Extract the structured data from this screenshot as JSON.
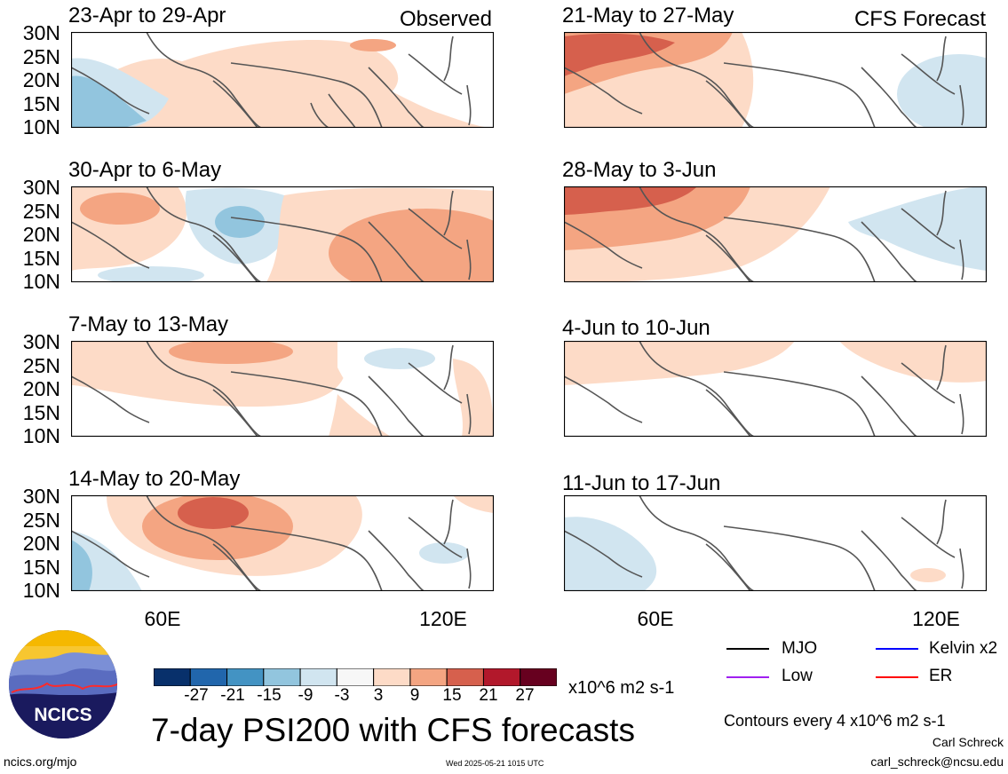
{
  "panels": [
    {
      "id": "p1",
      "title": "23-Apr to 29-Apr",
      "tag": "Observed"
    },
    {
      "id": "p2",
      "title": "21-May to 27-May",
      "tag": "CFS Forecast"
    },
    {
      "id": "p3",
      "title": "30-Apr to 6-May",
      "tag": ""
    },
    {
      "id": "p4",
      "title": "28-May to 3-Jun",
      "tag": ""
    },
    {
      "id": "p5",
      "title": "7-May to 13-May",
      "tag": ""
    },
    {
      "id": "p6",
      "title": "4-Jun to 10-Jun",
      "tag": ""
    },
    {
      "id": "p7",
      "title": "14-May to 20-May",
      "tag": ""
    },
    {
      "id": "p8",
      "title": "11-Jun to 17-Jun",
      "tag": ""
    }
  ],
  "lat_labels": [
    "30N",
    "25N",
    "20N",
    "15N",
    "10N"
  ],
  "lon_labels": [
    "60E",
    "120E"
  ],
  "colorbar": {
    "colors": [
      "#08306b",
      "#2166ac",
      "#4393c3",
      "#92c5de",
      "#d1e5f0",
      "#f7f7f7",
      "#fddbc7",
      "#f4a582",
      "#d6604d",
      "#b2182b",
      "#67001f"
    ],
    "labels": [
      "-27",
      "-21",
      "-15",
      "-9",
      "-3",
      "3",
      "9",
      "15",
      "21",
      "27"
    ],
    "units": "x10^6 m2 s-1"
  },
  "title": "7-day PSI200 with CFS forecasts",
  "legend": [
    {
      "label": "MJO",
      "color": "#000000"
    },
    {
      "label": "Kelvin x2",
      "color": "#0000ff"
    },
    {
      "label": "Low",
      "color": "#a020f0"
    },
    {
      "label": "ER",
      "color": "#ff0000"
    }
  ],
  "contour_note": "Contours every 4 x10^6 m2 s-1",
  "author": "Carl Schreck",
  "email": "carl_schreck@ncsu.edu",
  "url": "ncics.org/mjo",
  "timestamp": "Wed 2025-05-21 1015 UTC",
  "logo_text": "NCICS"
}
